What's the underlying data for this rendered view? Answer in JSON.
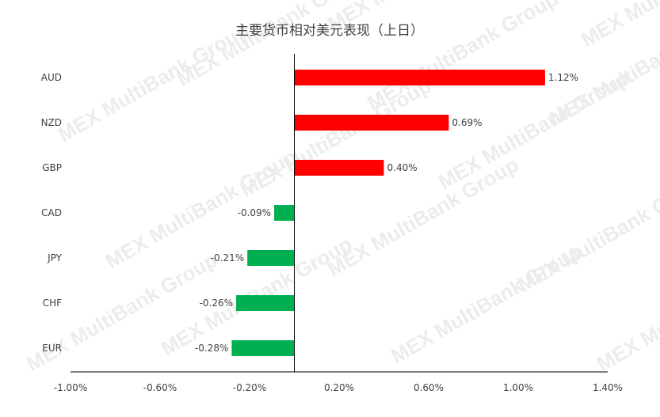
{
  "chart_data": {
    "type": "bar",
    "orientation": "horizontal",
    "title": "主要货币相对美元表现（上日）",
    "categories": [
      "AUD",
      "NZD",
      "GBP",
      "CAD",
      "JPY",
      "CHF",
      "EUR"
    ],
    "values": [
      1.12,
      0.69,
      0.4,
      -0.09,
      -0.21,
      -0.26,
      -0.28
    ],
    "data_labels": [
      "1.12%",
      "0.69%",
      "0.40%",
      "-0.09%",
      "-0.21%",
      "-0.26%",
      "-0.28%"
    ],
    "x_ticks": [
      -1.0,
      -0.6,
      -0.2,
      0.2,
      0.6,
      1.0,
      1.4
    ],
    "x_tick_labels": [
      "-1.00%",
      "-0.60%",
      "-0.20%",
      "0.20%",
      "0.60%",
      "1.00%",
      "1.40%"
    ],
    "xlim": [
      -1.0,
      1.4
    ],
    "xlabel": "",
    "ylabel": "",
    "grid": false,
    "legend": "none",
    "colors": {
      "positive": "#ff0000",
      "negative": "#00b050",
      "axis": "#000000",
      "text": "#404040"
    },
    "watermark": "MEX MultiBank Group"
  }
}
